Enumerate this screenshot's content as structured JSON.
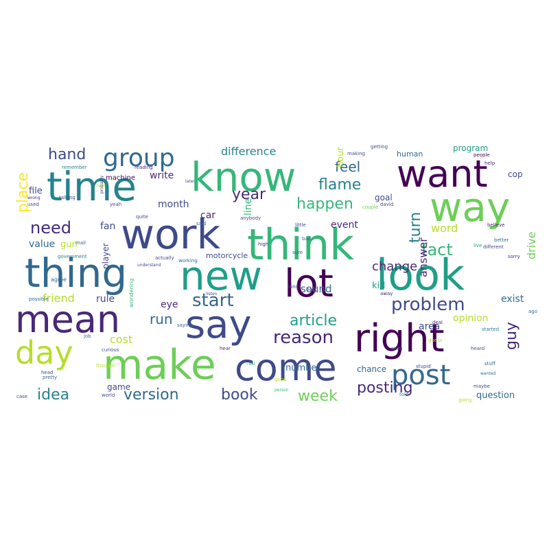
{
  "palette": [
    "#440154",
    "#482878",
    "#3e4a89",
    "#31688e",
    "#26828e",
    "#1f9e89",
    "#35b779",
    "#6ece58",
    "#b5de2b",
    "#fde725"
  ],
  "words": [
    {
      "text": "know",
      "c": 6
    },
    {
      "text": "want",
      "c": 0
    },
    {
      "text": "time",
      "c": 4
    },
    {
      "text": "way",
      "c": 7
    },
    {
      "text": "think",
      "c": 6
    },
    {
      "text": "work",
      "c": 2
    },
    {
      "text": "new",
      "c": 5
    },
    {
      "text": "thing",
      "c": 3
    },
    {
      "text": "look",
      "c": 5
    },
    {
      "text": "lot",
      "c": 0
    },
    {
      "text": "mean",
      "c": 1
    },
    {
      "text": "say",
      "c": 2
    },
    {
      "text": "right",
      "c": 0
    },
    {
      "text": "day",
      "c": 8
    },
    {
      "text": "make",
      "c": 7
    },
    {
      "text": "come",
      "c": 2
    },
    {
      "text": "post",
      "c": 3
    },
    {
      "text": "group",
      "c": 3
    },
    {
      "text": "hand",
      "c": 2
    },
    {
      "text": "need",
      "c": 1
    },
    {
      "text": "feel",
      "c": 3
    },
    {
      "text": "flame",
      "c": 4
    },
    {
      "text": "happen",
      "c": 6
    },
    {
      "text": "year",
      "c": 1
    },
    {
      "text": "place",
      "c": 9
    },
    {
      "text": "difference",
      "c": 4
    },
    {
      "text": "problem",
      "c": 2
    },
    {
      "text": "start",
      "c": 3
    },
    {
      "text": "fact",
      "c": 6
    },
    {
      "text": "turn",
      "c": 4
    },
    {
      "text": "article",
      "c": 5
    },
    {
      "text": "reason",
      "c": 1
    },
    {
      "text": "guy",
      "c": 1
    },
    {
      "text": "run",
      "c": 3
    },
    {
      "text": "idea",
      "c": 4
    },
    {
      "text": "version",
      "c": 3
    },
    {
      "text": "book",
      "c": 2
    },
    {
      "text": "week",
      "c": 7
    },
    {
      "text": "posting",
      "c": 1
    },
    {
      "text": "change",
      "c": 1
    },
    {
      "text": "word",
      "c": 8
    },
    {
      "text": "answer",
      "c": 1
    },
    {
      "text": "drive",
      "c": 7
    },
    {
      "text": "car",
      "c": 1
    },
    {
      "text": "write",
      "c": 1
    },
    {
      "text": "file",
      "c": 2
    },
    {
      "text": "fan",
      "c": 2
    },
    {
      "text": "month",
      "c": 2
    },
    {
      "text": "program",
      "c": 5
    },
    {
      "text": "human",
      "c": 3
    },
    {
      "text": "cop",
      "c": 2
    },
    {
      "text": "goal",
      "c": 2
    },
    {
      "text": "line",
      "c": 6
    },
    {
      "text": "event",
      "c": 1
    },
    {
      "text": "gun",
      "c": 8
    },
    {
      "text": "value",
      "c": 3
    },
    {
      "text": "friend",
      "c": 8
    },
    {
      "text": "rule",
      "c": 2
    },
    {
      "text": "eye",
      "c": 1
    },
    {
      "text": "cost",
      "c": 8
    },
    {
      "text": "sound",
      "c": 3
    },
    {
      "text": "kid",
      "c": 5
    },
    {
      "text": "exist",
      "c": 3
    },
    {
      "text": "area",
      "c": 2
    },
    {
      "text": "opinion",
      "c": 8
    },
    {
      "text": "number",
      "c": 3
    },
    {
      "text": "chance",
      "c": 3
    },
    {
      "text": "game",
      "c": 2
    },
    {
      "text": "question",
      "c": 3
    },
    {
      "text": "machine",
      "c": 0
    },
    {
      "text": "player",
      "c": 2
    },
    {
      "text": "motorcycle",
      "c": 2
    },
    {
      "text": "hour",
      "c": 8
    },
    {
      "text": "agree",
      "c": 3
    },
    {
      "text": "government",
      "c": 4
    },
    {
      "text": "remember",
      "c": 4
    },
    {
      "text": "actually",
      "c": 2
    },
    {
      "text": "talking",
      "c": 2
    },
    {
      "text": "probably",
      "c": 2
    },
    {
      "text": "understand",
      "c": 2
    },
    {
      "text": "working",
      "c": 3
    },
    {
      "text": "wondering",
      "c": 6
    },
    {
      "text": "possible",
      "c": 3
    },
    {
      "text": "people",
      "c": 0
    },
    {
      "text": "reading",
      "c": 1
    },
    {
      "text": "quite",
      "c": 2
    },
    {
      "text": "listen",
      "c": 2
    },
    {
      "text": "thought",
      "c": 8
    },
    {
      "text": "stupid",
      "c": 2
    },
    {
      "text": "better",
      "c": 3
    },
    {
      "text": "sorry",
      "c": 1
    },
    {
      "text": "believe",
      "c": 1
    },
    {
      "text": "couple",
      "c": 7
    },
    {
      "text": "anybody",
      "c": 2
    },
    {
      "text": "curious",
      "c": 2
    },
    {
      "text": "pretty",
      "c": 3
    },
    {
      "text": "world",
      "c": 2
    },
    {
      "text": "going",
      "c": 8
    },
    {
      "text": "told",
      "c": 4
    },
    {
      "text": "getting",
      "c": 2
    },
    {
      "text": "making",
      "c": 2
    },
    {
      "text": "saying",
      "c": 3
    },
    {
      "text": "started",
      "c": 4
    },
    {
      "text": "maybe",
      "c": 2
    },
    {
      "text": "different",
      "c": 2
    },
    {
      "text": "little",
      "c": 2
    },
    {
      "text": "hard",
      "c": 8
    },
    {
      "text": "case",
      "c": 2
    },
    {
      "text": "job",
      "c": 3
    },
    {
      "text": "real",
      "c": 6
    },
    {
      "text": "good",
      "c": 8
    },
    {
      "text": "best",
      "c": 2
    },
    {
      "text": "later",
      "c": 2
    },
    {
      "text": "wrong",
      "c": 1
    },
    {
      "text": "used",
      "c": 2
    },
    {
      "text": "high",
      "c": 1
    },
    {
      "text": "said",
      "c": 3
    },
    {
      "text": "sure",
      "c": 2
    },
    {
      "text": "deal",
      "c": 1
    },
    {
      "text": "guess",
      "c": 8
    },
    {
      "text": "heard",
      "c": 2
    },
    {
      "text": "david",
      "c": 2
    },
    {
      "text": "away",
      "c": 1
    },
    {
      "text": "help",
      "c": 1
    },
    {
      "text": "long",
      "c": 2
    },
    {
      "text": "seen",
      "c": 3
    },
    {
      "text": "mail",
      "c": 3
    },
    {
      "text": "person",
      "c": 6
    },
    {
      "text": "bad",
      "c": 3
    },
    {
      "text": "yeah",
      "c": 2
    },
    {
      "text": "live",
      "c": 5
    },
    {
      "text": "ago",
      "c": 3
    },
    {
      "text": "hear",
      "c": 1
    },
    {
      "text": "head",
      "c": 2
    },
    {
      "text": "stuff",
      "c": 3
    },
    {
      "text": "wanted",
      "c": 3
    }
  ]
}
